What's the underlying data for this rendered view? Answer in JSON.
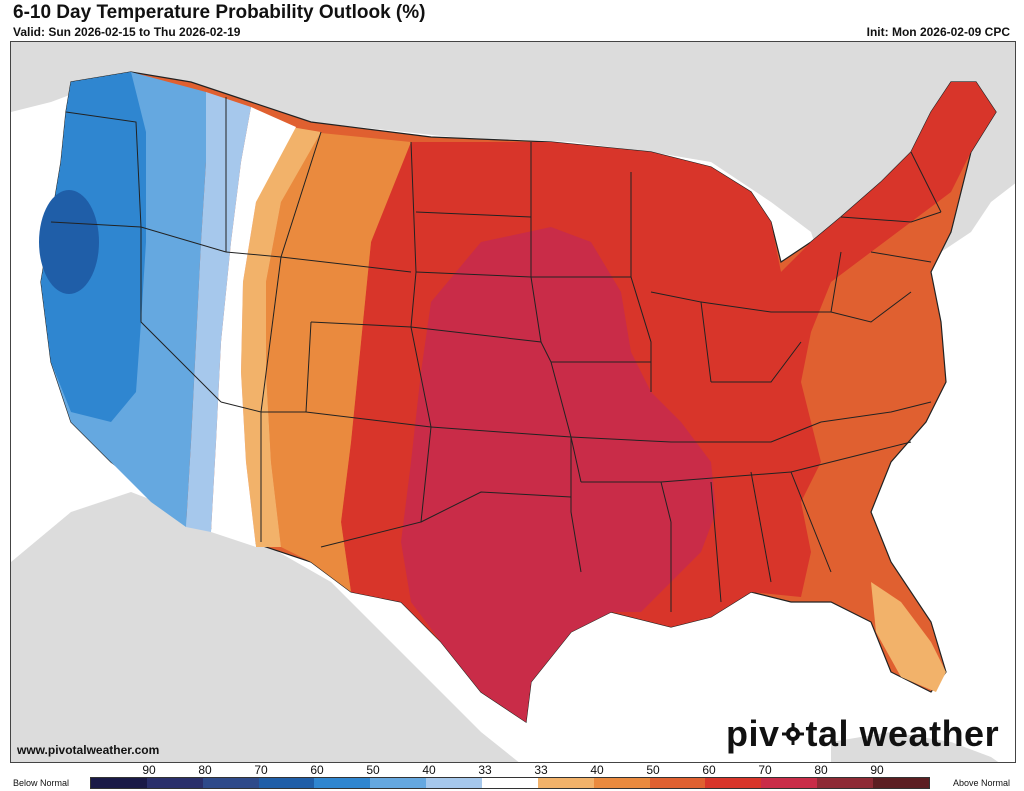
{
  "header": {
    "title": "6-10 Day Temperature Probability Outlook (%)",
    "valid": "Valid: Sun 2026-02-15 to Thu 2026-02-19",
    "init": "Init: Mon 2026-02-09 CPC"
  },
  "footer": {
    "website": "www.pivotalweather.com",
    "logo_left": "piv",
    "logo_right": "tal weather"
  },
  "legend": {
    "below_label": "Below Normal",
    "above_label": "Above Normal",
    "labels": [
      "90",
      "80",
      "70",
      "60",
      "50",
      "40",
      "33",
      "33",
      "40",
      "50",
      "60",
      "70",
      "80",
      "90"
    ],
    "colors": [
      "#1a1a47",
      "#2a2f6b",
      "#2e4a8a",
      "#1f5ea8",
      "#2f86d0",
      "#65a8e0",
      "#a6c8ec",
      "#ffffff",
      "#f2b26a",
      "#ea8a3e",
      "#e06030",
      "#d8352a",
      "#c92c48",
      "#8e2a35",
      "#5c1e22"
    ]
  },
  "map_layers": {
    "land_color": "#dcdcdc",
    "water_color": "#ffffff",
    "colors": {
      "below_50": "#2f86d0",
      "below_60": "#1f5ea8",
      "below_40": "#65a8e0",
      "below_33": "#a6c8ec",
      "near_normal": "#ffffff",
      "above_33": "#f2b26a",
      "above_40": "#ea8a3e",
      "above_50": "#e06030",
      "above_60": "#d8352a",
      "above_70": "#c92c48"
    }
  }
}
